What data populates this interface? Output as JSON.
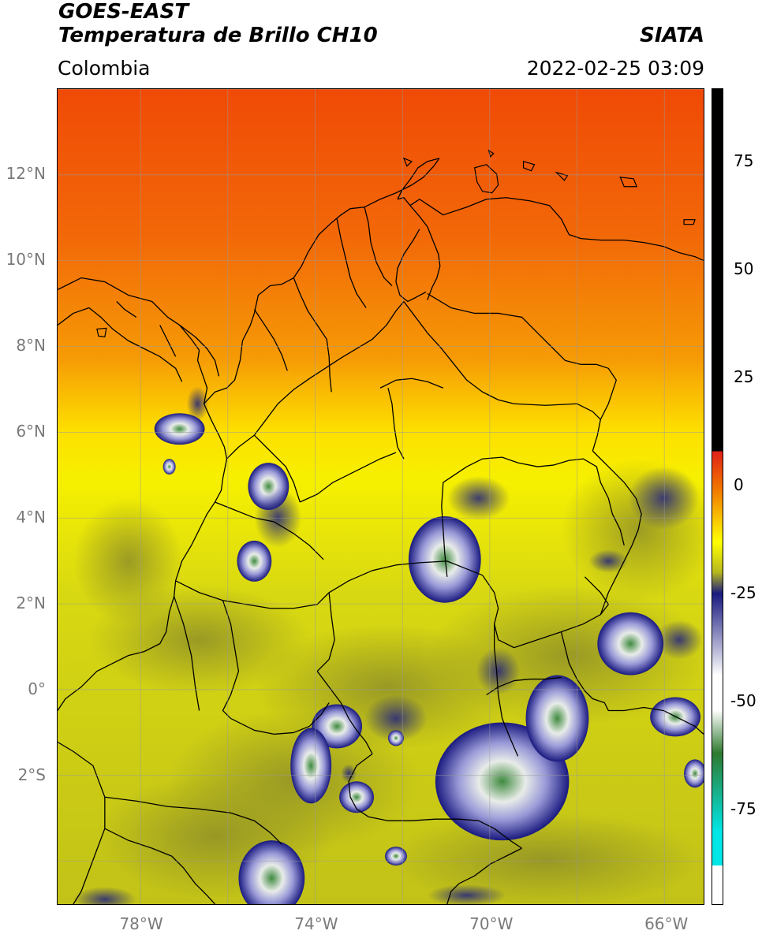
{
  "header": {
    "satellite": "GOES-EAST",
    "product": "Temperatura de Brillo CH10",
    "region": "Colombia",
    "agency": "SIATA",
    "timestamp": "2022-02-25 03:09"
  },
  "map": {
    "lat_labels": [
      "12°N",
      "10°N",
      "8°N",
      "6°N",
      "4°N",
      "2°N",
      "0°",
      "2°S"
    ],
    "lon_labels": [
      "78°W",
      "74°W",
      "70°W",
      "66°W"
    ],
    "lat_range": [
      -5,
      14
    ],
    "lon_range": [
      -79.9,
      -65.1
    ],
    "lat_ticks": [
      12,
      10,
      8,
      6,
      4,
      2,
      0,
      -2
    ],
    "lon_ticks": [
      -78,
      -74,
      -70,
      -66
    ],
    "grid": true
  },
  "colorbar": {
    "tick_labels": [
      "75",
      "50",
      "25",
      "0",
      "-25",
      "-50",
      "-75"
    ],
    "tick_values": [
      75,
      50,
      25,
      0,
      -25,
      -50,
      -75
    ],
    "range": [
      -97,
      92
    ],
    "colors": {
      "hot": "#000000",
      "red": "#e0201a",
      "orange": "#f07000",
      "yellow": "#ffff00",
      "olive": "#b8b820",
      "navy": "#1a1a80",
      "white": "#ffffff",
      "green": "#2f7a2f",
      "cyan": "#00e5e5"
    }
  }
}
